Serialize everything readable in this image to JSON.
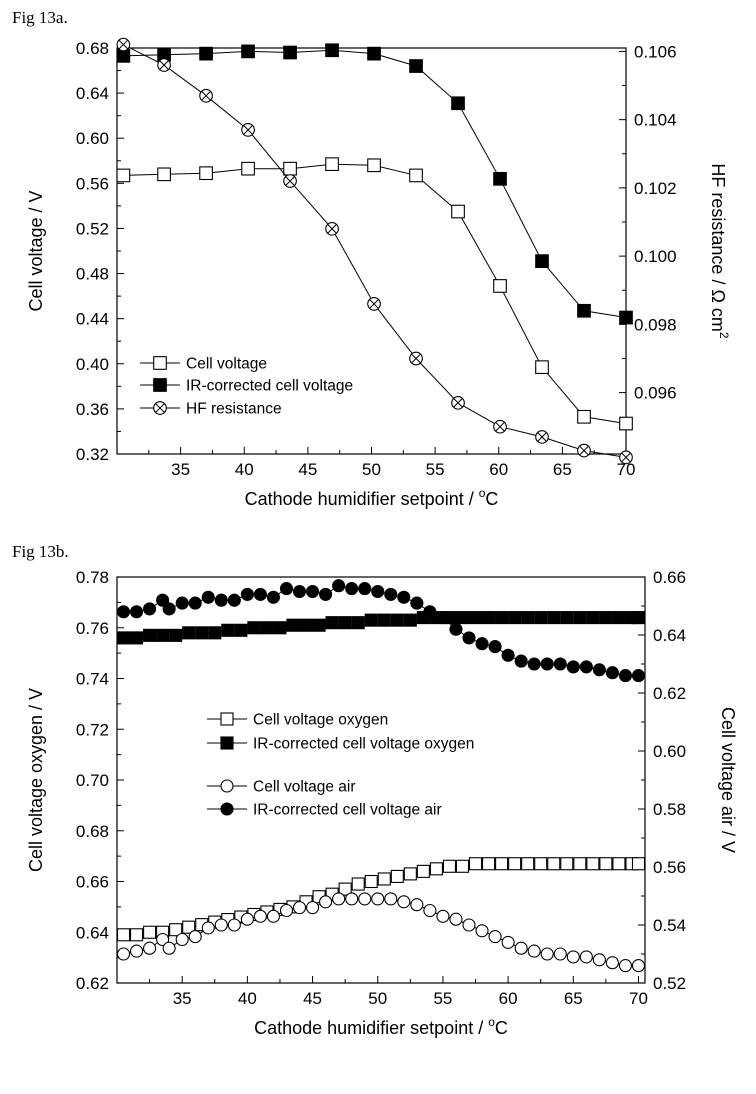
{
  "figures": {
    "a": {
      "label": "Fig 13a."
    },
    "b": {
      "label": "Fig 13b."
    }
  },
  "chart_data": [
    {
      "id": "a",
      "type": "line",
      "title": "Fig 13a.",
      "xlabel": "Cathode humidifier setpoint / °C",
      "xlabel_main": "Cathode humidifier setpoint / ",
      "xlabel_sup": "o",
      "xlabel_end": "C",
      "ylabel": "Cell voltage / V",
      "y2label": "HF resistance  / Ω cm²",
      "y2label_main": "HF resistance  / Ω cm",
      "y2label_sup": "2",
      "xlim": [
        30,
        70
      ],
      "ylim": [
        0.32,
        0.68
      ],
      "y2lim": [
        0.0942,
        0.1061
      ],
      "xticks": [
        35,
        40,
        45,
        50,
        55,
        60,
        65,
        70
      ],
      "yticks": [
        0.32,
        0.36,
        0.4,
        0.44,
        0.48,
        0.52,
        0.56,
        0.6,
        0.64,
        0.68
      ],
      "ytick_labels": [
        "0.32",
        "0.36",
        "0.40",
        "0.44",
        "0.48",
        "0.52",
        "0.56",
        "0.60",
        "0.64",
        "0.68"
      ],
      "y2ticks": [
        0.096,
        0.098,
        0.1,
        0.102,
        0.104,
        0.106
      ],
      "y2tick_labels": [
        "0.096",
        "0.098",
        "0.100",
        "0.102",
        "0.104",
        "0.106"
      ],
      "legend_position": "bottom-left",
      "series": [
        {
          "name": "Cell voltage",
          "axis": "left",
          "marker": "open-square",
          "x": [
            30.5,
            33.7,
            37.0,
            40.3,
            43.6,
            46.9,
            50.2,
            53.5,
            56.8,
            60.1,
            63.4,
            66.7,
            70.0
          ],
          "y": [
            0.567,
            0.568,
            0.569,
            0.573,
            0.573,
            0.577,
            0.576,
            0.567,
            0.535,
            0.469,
            0.397,
            0.353,
            0.347
          ]
        },
        {
          "name": "IR-corrected cell voltage",
          "axis": "left",
          "marker": "filled-square",
          "x": [
            30.5,
            33.7,
            37.0,
            40.3,
            43.6,
            46.9,
            50.2,
            53.5,
            56.8,
            60.1,
            63.4,
            66.7,
            70.0
          ],
          "y": [
            0.673,
            0.674,
            0.675,
            0.677,
            0.676,
            0.678,
            0.675,
            0.664,
            0.631,
            0.564,
            0.491,
            0.447,
            0.441
          ]
        },
        {
          "name": "HF resistance",
          "axis": "right",
          "marker": "circle-x",
          "x": [
            30.5,
            33.7,
            37.0,
            40.3,
            43.6,
            46.9,
            50.2,
            53.5,
            56.8,
            60.1,
            63.4,
            66.7,
            70.0
          ],
          "y": [
            0.1062,
            0.1056,
            0.1047,
            0.1037,
            0.1022,
            0.1008,
            0.0986,
            0.097,
            0.0957,
            0.095,
            0.0947,
            0.0943,
            0.0941
          ]
        }
      ]
    },
    {
      "id": "b",
      "type": "line",
      "title": "Fig 13b.",
      "xlabel": "Cathode humidifier setpoint / °C",
      "xlabel_main": "Cathode humidifier setpoint / ",
      "xlabel_sup": "o",
      "xlabel_end": "C",
      "ylabel": "Cell voltage oxygen / V",
      "y2label": "Cell voltage air  / V",
      "xlim": [
        30,
        70.5
      ],
      "ylim": [
        0.62,
        0.78
      ],
      "y2lim": [
        0.52,
        0.66
      ],
      "xticks": [
        35,
        40,
        45,
        50,
        55,
        60,
        65,
        70
      ],
      "yticks": [
        0.62,
        0.64,
        0.66,
        0.68,
        0.7,
        0.72,
        0.74,
        0.76,
        0.78
      ],
      "ytick_labels": [
        "0.62",
        "0.64",
        "0.66",
        "0.68",
        "0.70",
        "0.72",
        "0.74",
        "0.76",
        "0.78"
      ],
      "y2ticks": [
        0.52,
        0.54,
        0.56,
        0.58,
        0.6,
        0.62,
        0.64,
        0.66
      ],
      "y2tick_labels": [
        "0.52",
        "0.54",
        "0.56",
        "0.58",
        "0.60",
        "0.62",
        "0.64",
        "0.66"
      ],
      "legend_position": "center-left",
      "series": [
        {
          "name": "Cell voltage oxygen",
          "axis": "left",
          "marker": "open-square",
          "x": [
            30.5,
            31.5,
            32.5,
            33.5,
            34.5,
            35.5,
            36.5,
            37.5,
            38.5,
            39.5,
            40.5,
            41.5,
            42.5,
            43.5,
            44.5,
            45.5,
            46.5,
            47.5,
            48.5,
            49.5,
            50.5,
            51.5,
            52.5,
            53.5,
            54.5,
            55.5,
            56.5,
            57.5,
            58.5,
            59.5,
            60.5,
            61.5,
            62.5,
            63.5,
            64.5,
            65.5,
            66.5,
            67.5,
            68.5,
            69.5,
            70.0
          ],
          "y": [
            0.639,
            0.639,
            0.64,
            0.64,
            0.641,
            0.642,
            0.643,
            0.644,
            0.645,
            0.646,
            0.647,
            0.648,
            0.649,
            0.65,
            0.652,
            0.654,
            0.655,
            0.657,
            0.659,
            0.66,
            0.661,
            0.662,
            0.663,
            0.664,
            0.665,
            0.666,
            0.666,
            0.667,
            0.667,
            0.667,
            0.667,
            0.667,
            0.667,
            0.667,
            0.667,
            0.667,
            0.667,
            0.667,
            0.667,
            0.667,
            0.667
          ]
        },
        {
          "name": "IR-corrected cell voltage oxygen",
          "axis": "left",
          "marker": "filled-square",
          "x": [
            30.5,
            31.5,
            32.5,
            33.5,
            34.5,
            35.5,
            36.5,
            37.5,
            38.5,
            39.5,
            40.5,
            41.5,
            42.5,
            43.5,
            44.5,
            45.5,
            46.5,
            47.5,
            48.5,
            49.5,
            50.5,
            51.5,
            52.5,
            53.5,
            54.5,
            55.5,
            56.5,
            57.5,
            58.5,
            59.5,
            60.5,
            61.5,
            62.5,
            63.5,
            64.5,
            65.5,
            66.5,
            67.5,
            68.5,
            69.5,
            70.0
          ],
          "y": [
            0.756,
            0.756,
            0.757,
            0.757,
            0.757,
            0.758,
            0.758,
            0.758,
            0.759,
            0.759,
            0.76,
            0.76,
            0.76,
            0.761,
            0.761,
            0.761,
            0.762,
            0.762,
            0.762,
            0.763,
            0.763,
            0.763,
            0.763,
            0.764,
            0.764,
            0.764,
            0.764,
            0.764,
            0.764,
            0.764,
            0.764,
            0.764,
            0.764,
            0.764,
            0.764,
            0.764,
            0.764,
            0.764,
            0.764,
            0.764,
            0.764
          ]
        },
        {
          "name": "Cell voltage air",
          "axis": "right",
          "marker": "open-circle",
          "x": [
            30.5,
            31.5,
            32.5,
            33.5,
            34.0,
            35.0,
            36.0,
            37.0,
            38.0,
            39.0,
            40.0,
            41.0,
            42.0,
            43.0,
            44.0,
            45.0,
            46.0,
            47.0,
            48.0,
            49.0,
            50.0,
            51.0,
            52.0,
            53.0,
            54.0,
            55.0,
            56.0,
            57.0,
            58.0,
            59.0,
            60.0,
            61.0,
            62.0,
            63.0,
            64.0,
            65.0,
            66.0,
            67.0,
            68.0,
            69.0,
            70.0
          ],
          "y": [
            0.53,
            0.531,
            0.532,
            0.535,
            0.532,
            0.535,
            0.536,
            0.539,
            0.54,
            0.54,
            0.542,
            0.543,
            0.543,
            0.545,
            0.546,
            0.546,
            0.548,
            0.549,
            0.549,
            0.549,
            0.549,
            0.549,
            0.548,
            0.547,
            0.545,
            0.543,
            0.542,
            0.54,
            0.538,
            0.536,
            0.534,
            0.532,
            0.531,
            0.53,
            0.53,
            0.529,
            0.529,
            0.528,
            0.527,
            0.526,
            0.526
          ]
        },
        {
          "name": "IR-corrected cell voltage air",
          "axis": "right",
          "marker": "filled-circle",
          "x": [
            30.5,
            31.5,
            32.5,
            33.5,
            34.0,
            35.0,
            36.0,
            37.0,
            38.0,
            39.0,
            40.0,
            41.0,
            42.0,
            43.0,
            44.0,
            45.0,
            46.0,
            47.0,
            48.0,
            49.0,
            50.0,
            51.0,
            52.0,
            53.0,
            54.0,
            55.0,
            56.0,
            57.0,
            58.0,
            59.0,
            60.0,
            61.0,
            62.0,
            63.0,
            64.0,
            65.0,
            66.0,
            67.0,
            68.0,
            69.0,
            70.0
          ],
          "y": [
            0.648,
            0.648,
            0.649,
            0.652,
            0.649,
            0.651,
            0.651,
            0.653,
            0.652,
            0.652,
            0.654,
            0.654,
            0.653,
            0.656,
            0.655,
            0.655,
            0.654,
            0.657,
            0.656,
            0.656,
            0.655,
            0.654,
            0.653,
            0.651,
            0.648,
            0.646,
            0.642,
            0.639,
            0.637,
            0.636,
            0.633,
            0.631,
            0.63,
            0.63,
            0.63,
            0.629,
            0.629,
            0.628,
            0.627,
            0.626,
            0.626
          ]
        }
      ]
    }
  ]
}
